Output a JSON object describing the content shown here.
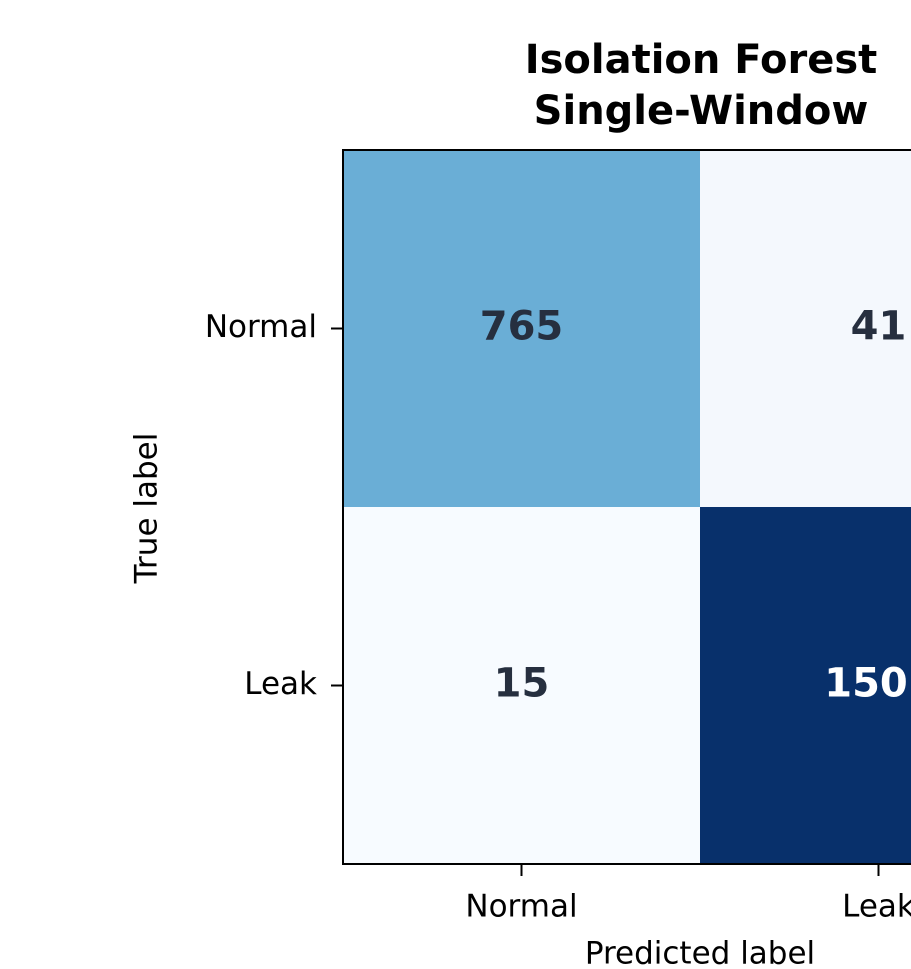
{
  "chart_data": {
    "type": "heatmap",
    "title": [
      "Isolation Forest",
      "Single-Window"
    ],
    "x_label": "Predicted label",
    "y_label": "True label",
    "x_categories": [
      "Normal",
      "Leak"
    ],
    "y_categories": [
      "Normal",
      "Leak"
    ],
    "values": [
      [
        765,
        41
      ],
      [
        15,
        150
      ]
    ],
    "colors": [
      [
        "#6aaed6",
        "#f4f8fd"
      ],
      [
        "#f7fbff",
        "#08306b"
      ]
    ]
  }
}
